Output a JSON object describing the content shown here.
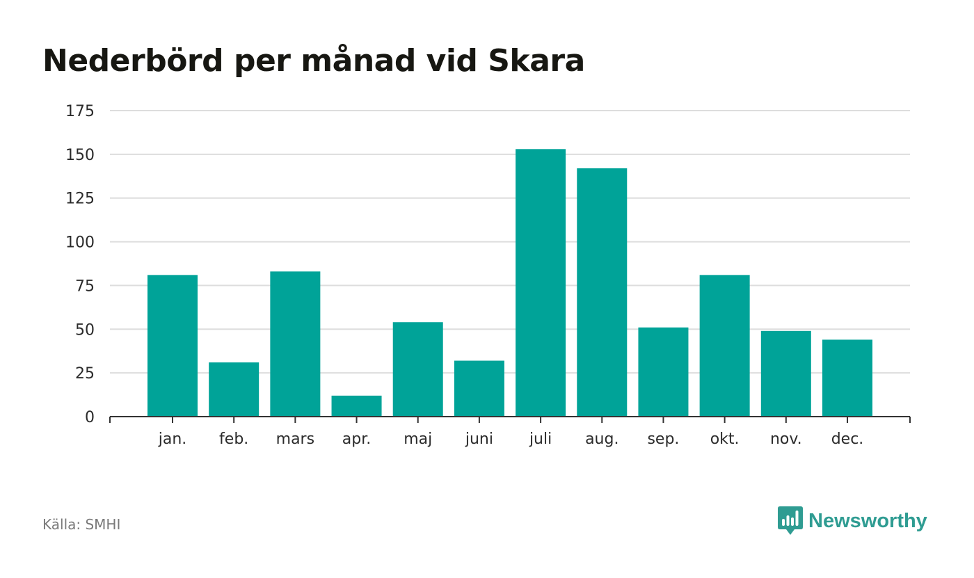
{
  "title": "Nederbörd per månad vid Skara",
  "source": "Källa: SMHI",
  "brand": "Newsworthy",
  "colors": {
    "bar": "#00a398",
    "brand": "#2f9c92",
    "grid": "#dddddd",
    "axis": "#333333"
  },
  "icons": {
    "logo": "speech-bubble-chart-icon"
  },
  "chart_data": {
    "type": "bar",
    "categories": [
      "jan.",
      "feb.",
      "mars",
      "apr.",
      "maj",
      "juni",
      "juli",
      "aug.",
      "sep.",
      "okt.",
      "nov.",
      "dec."
    ],
    "values": [
      81,
      31,
      83,
      12,
      54,
      32,
      153,
      142,
      51,
      81,
      49,
      44
    ],
    "title": "Nederbörd per månad vid Skara",
    "xlabel": "",
    "ylabel": "",
    "ylim": [
      0,
      175
    ],
    "yticks": [
      0,
      25,
      50,
      75,
      100,
      125,
      150,
      175
    ],
    "grid": true,
    "legend": false
  }
}
